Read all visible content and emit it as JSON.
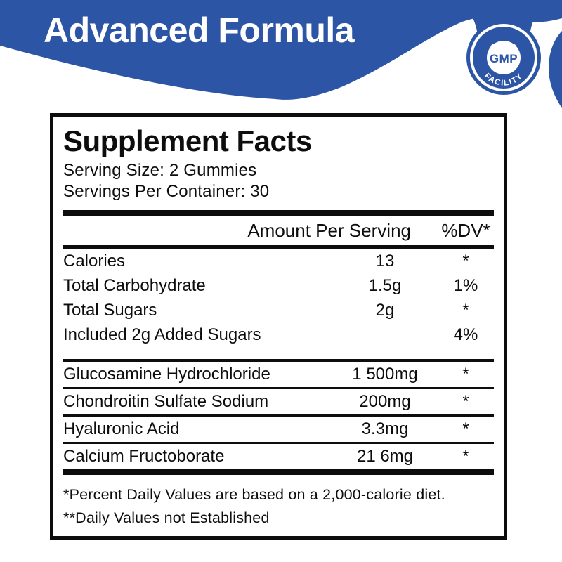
{
  "colors": {
    "brand_blue": "#2d55a5",
    "text_black": "#0d0d0d"
  },
  "banner": {
    "title": "Advanced Formula"
  },
  "badge": {
    "arc_top": "GMP",
    "center": "GMP",
    "arc_bottom": "FACILITY"
  },
  "panel": {
    "title": "Supplement Facts",
    "serving_size_label": "Serving Size: 2 Gummies",
    "servings_per_container_label": "Servings Per Container: 30",
    "columns": {
      "amount": "Amount Per Serving",
      "dv": "%DV*"
    },
    "nutrients": [
      {
        "name": "Calories",
        "amount": "13",
        "dv": "*"
      },
      {
        "name": "Total Carbohydrate",
        "amount": "1.5g",
        "dv": "1%"
      },
      {
        "name": "Total Sugars",
        "amount": "2g",
        "dv": "*"
      },
      {
        "name": "Included 2g Added Sugars",
        "amount": "",
        "dv": "4%"
      }
    ],
    "ingredients": [
      {
        "name": "Glucosamine Hydrochloride",
        "amount": "1 500mg",
        "dv": "*"
      },
      {
        "name": "Chondroitin Sulfate Sodium",
        "amount": "200mg",
        "dv": "*"
      },
      {
        "name": "Hyaluronic Acid",
        "amount": "3.3mg",
        "dv": "*"
      },
      {
        "name": "Calcium Fructoborate",
        "amount": "21 6mg",
        "dv": "*"
      }
    ],
    "footnotes": [
      "*Percent Daily Values are based on a 2,000-calorie diet.",
      "**Daily Values not Established"
    ]
  }
}
